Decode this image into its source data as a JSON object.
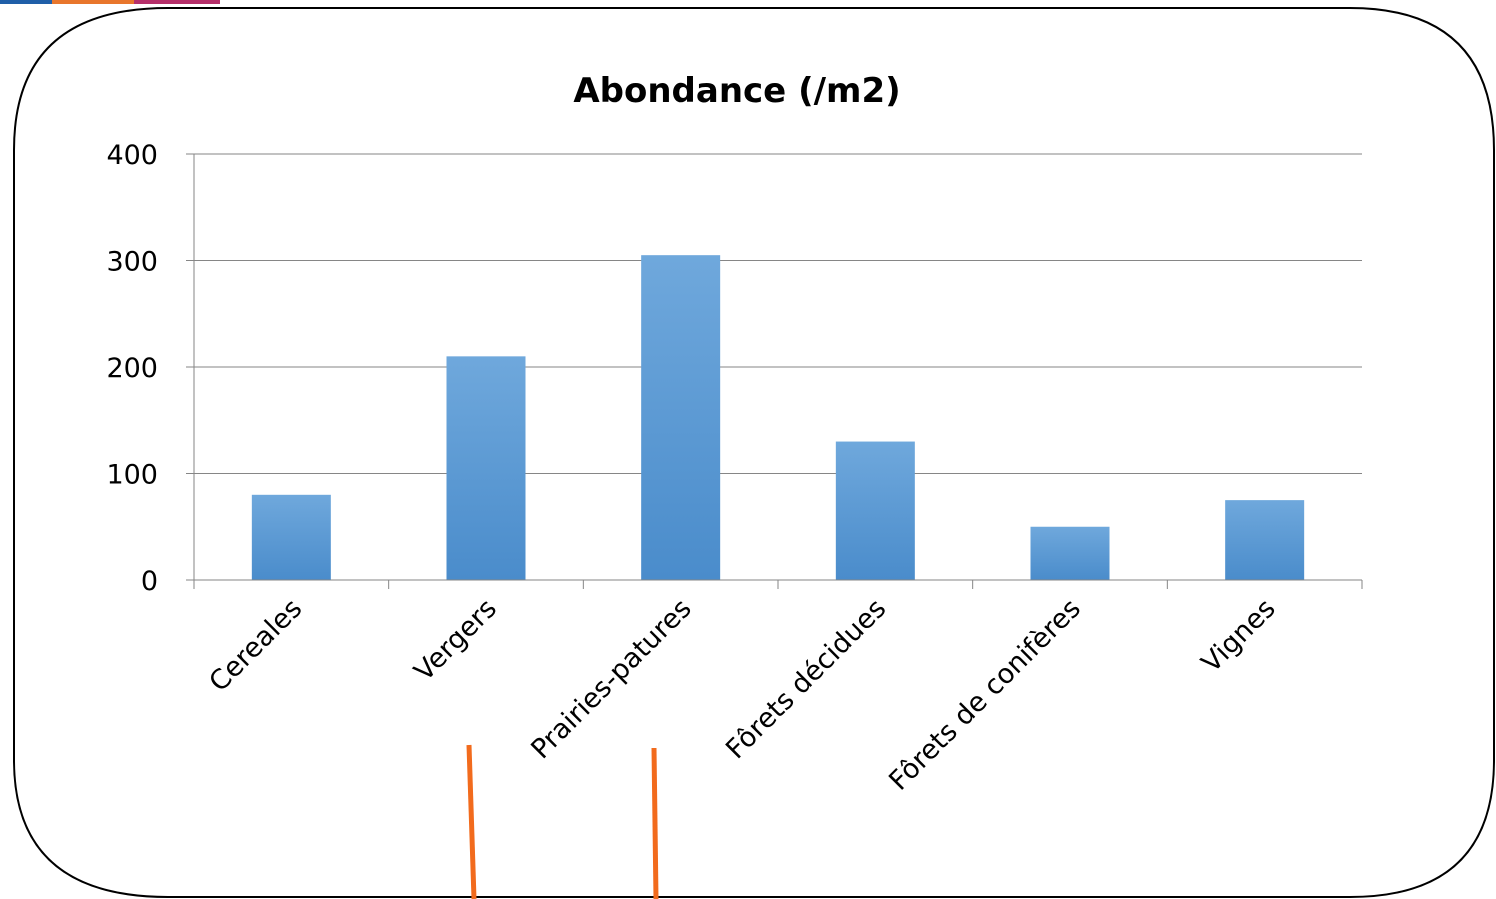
{
  "accent_colors": [
    "#1f5fa8",
    "#e8762c",
    "#b5306a"
  ],
  "frame_color": "#000000",
  "marker_color": "#f26b1d",
  "bar_color_top": "#6fa8dc",
  "bar_color_bottom": "#4a8ccb",
  "chart_data": {
    "type": "bar",
    "title": "Abondance (/m2)",
    "xlabel": "",
    "ylabel": "",
    "categories": [
      "Cereales",
      "Vergers",
      "Prairies-patures",
      "Fôrets décidues",
      "Fôrets de conifères",
      "Vignes"
    ],
    "values": [
      80,
      210,
      305,
      130,
      50,
      75
    ],
    "ylim": [
      0,
      400
    ],
    "yticks": [
      0,
      100,
      200,
      300,
      400
    ],
    "grid": true,
    "legend": "none"
  }
}
